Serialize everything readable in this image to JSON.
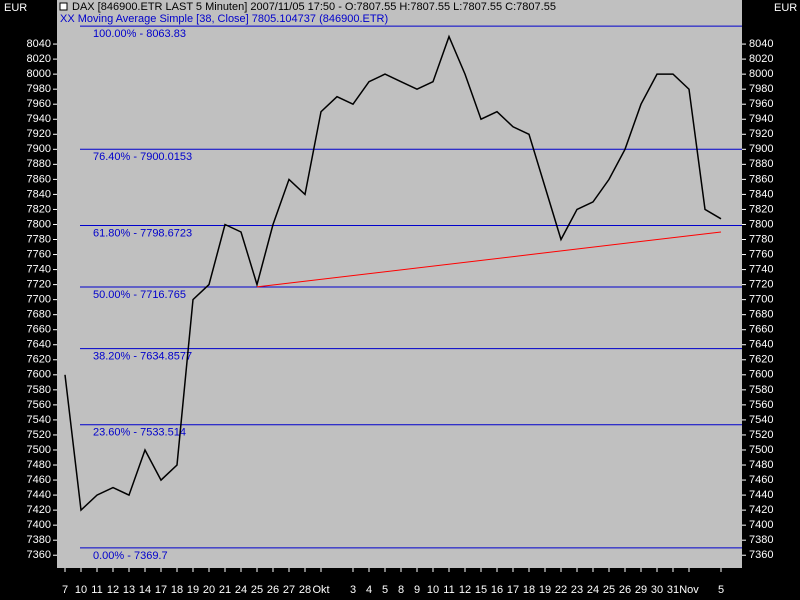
{
  "chart_data": {
    "type": "line",
    "title": "DAX [846900.ETR LAST 5 Minuten] 2007/11/05 17:50 - O:7807.55 H:7807.55 L:7807.55 C:7807.55",
    "subtitle": "XX Moving Average Simple [38, Close] 7805.104737 (846900.ETR)",
    "y_label_left": "EUR",
    "y_label_right": "EUR",
    "categories": [
      "7",
      "10",
      "11",
      "12",
      "13",
      "14",
      "17",
      "18",
      "19",
      "20",
      "21",
      "24",
      "25",
      "26",
      "27",
      "28",
      "Okt",
      null,
      "3",
      "4",
      "5",
      "8",
      "9",
      "10",
      "11",
      "12",
      "15",
      "16",
      "17",
      "18",
      "19",
      "22",
      "23",
      "24",
      "25",
      "26",
      "29",
      "30",
      "31",
      "Nov",
      null,
      "5"
    ],
    "series": [
      {
        "color": "#000000",
        "values": [
          7600,
          7420,
          7440,
          7450,
          7440,
          7500,
          7460,
          7480,
          7700,
          7720,
          7800,
          7790,
          7720,
          7800,
          7860,
          7840,
          7950,
          7970,
          7960,
          7990,
          8000,
          7990,
          7980,
          7990,
          8050,
          8000,
          7940,
          7950,
          7930,
          7920,
          7850,
          7780,
          7820,
          7830,
          7860,
          7900,
          7960,
          8000,
          8000,
          7980,
          7820,
          7807.55
        ]
      },
      {
        "color": "#ff0000",
        "values": [
          null,
          null,
          null,
          null,
          null,
          null,
          null,
          null,
          null,
          null,
          null,
          null,
          7717,
          null,
          null,
          null,
          null,
          null,
          null,
          null,
          null,
          null,
          null,
          null,
          null,
          null,
          null,
          null,
          null,
          null,
          null,
          null,
          null,
          null,
          null,
          null,
          null,
          null,
          null,
          null,
          null,
          7790
        ]
      }
    ],
    "fib_levels": [
      {
        "value": 8063.83,
        "label": "100.00% - 8063.83"
      },
      {
        "value": 7900.0153,
        "label": "76.40% - 7900.0153"
      },
      {
        "value": 7798.6723,
        "label": "61.80% - 7798.6723"
      },
      {
        "value": 7716.765,
        "label": "50.00% - 7716.765"
      },
      {
        "value": 7634.8577,
        "label": "38.20% - 7634.8577"
      },
      {
        "value": 7533.514,
        "label": "23.60% - 7533.514"
      },
      {
        "value": 7369.7,
        "label": "0.00% - 7369.7"
      }
    ],
    "fib_color": "#0000cc",
    "ylim": [
      7343,
      8080
    ],
    "yticks": [
      7360,
      7380,
      7400,
      7420,
      7440,
      7460,
      7480,
      7500,
      7520,
      7540,
      7560,
      7580,
      7600,
      7620,
      7640,
      7660,
      7680,
      7700,
      7720,
      7740,
      7760,
      7780,
      7800,
      7820,
      7840,
      7860,
      7880,
      7900,
      7920,
      7940,
      7960,
      7980,
      8000,
      8020,
      8040
    ]
  }
}
